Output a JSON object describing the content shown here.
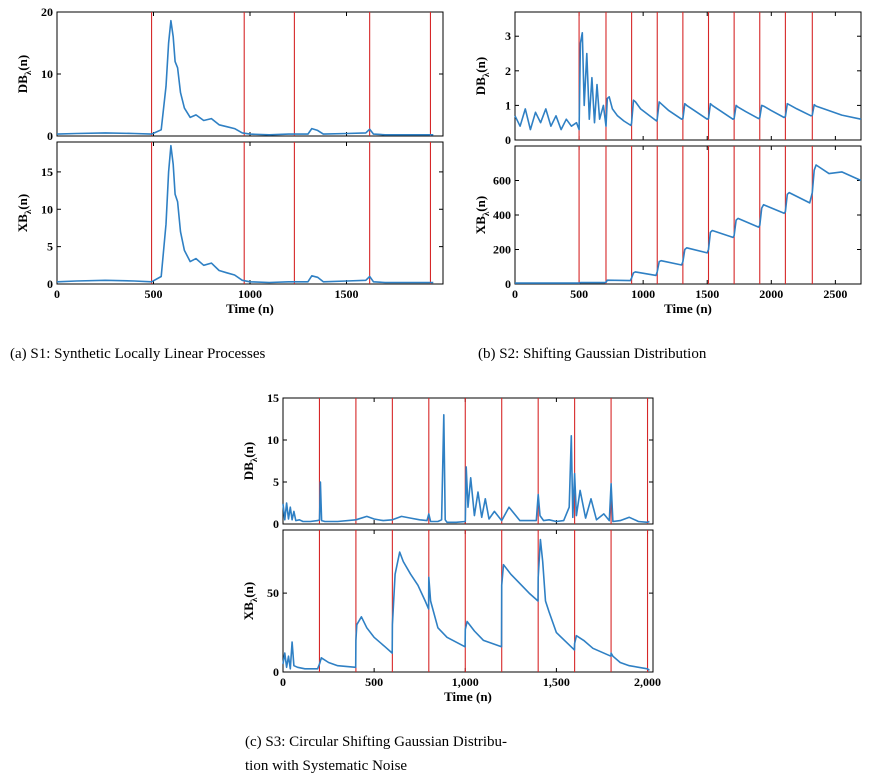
{
  "figure": {
    "captions": {
      "a": "(a) S1: Synthetic Locally Linear Processes",
      "b": "(b) S2: Shifting Gaussian Distribution",
      "c_line1": "(c) S3: Circular Shifting Gaussian Distribu-",
      "c_line2": "tion with Systematic Noise"
    },
    "colors": {
      "series": "#2f80c4",
      "changepoint": "#d62728",
      "axis": "#000000"
    }
  },
  "chart_data": [
    {
      "id": "a_top",
      "type": "line",
      "panel": "a",
      "position": "top",
      "title": "",
      "xlabel": "",
      "ylabel": "DB",
      "ylabel_sub": "λ",
      "ylabel_suffix": "(n)",
      "xlim": [
        0,
        2000
      ],
      "ylim": [
        0,
        20
      ],
      "xticks": [
        0,
        500,
        1000,
        1500
      ],
      "xtick_labels": [
        "",
        "",
        "",
        ""
      ],
      "yticks": [
        0,
        10,
        20
      ],
      "ytick_labels": [
        "0",
        "10",
        "20"
      ],
      "changepoints": [
        490,
        970,
        1230,
        1620,
        1935
      ],
      "series": [
        {
          "x": [
            0,
            100,
            250,
            400,
            490,
            540,
            565,
            578,
            590,
            602,
            612,
            625,
            640,
            660,
            690,
            720,
            760,
            800,
            840,
            880,
            920,
            960,
            1000,
            1100,
            1200,
            1300,
            1320,
            1350,
            1380,
            1500,
            1600,
            1620,
            1640,
            1700,
            1800,
            1935,
            1950
          ],
          "y": [
            0.3,
            0.4,
            0.5,
            0.4,
            0.3,
            1.0,
            8.0,
            15.0,
            18.6,
            16.0,
            12.0,
            11.0,
            7.0,
            4.5,
            3.0,
            3.4,
            2.5,
            2.8,
            1.8,
            1.5,
            1.2,
            0.5,
            0.3,
            0.2,
            0.3,
            0.3,
            1.2,
            0.9,
            0.3,
            0.4,
            0.5,
            1.1,
            0.3,
            0.2,
            0.2,
            0.2,
            0.2
          ]
        }
      ]
    },
    {
      "id": "a_bottom",
      "type": "line",
      "panel": "a",
      "position": "bottom",
      "title": "",
      "xlabel": "Time (n)",
      "ylabel": "XB",
      "ylabel_sub": "λ",
      "ylabel_suffix": "(n)",
      "xlim": [
        0,
        2000
      ],
      "ylim": [
        0,
        19
      ],
      "xticks": [
        0,
        500,
        1000,
        1500
      ],
      "xtick_labels": [
        "0",
        "500",
        "1000",
        "1500"
      ],
      "yticks": [
        0,
        5,
        10,
        15
      ],
      "ytick_labels": [
        "0",
        "5",
        "10",
        "15"
      ],
      "changepoints": [
        490,
        970,
        1230,
        1620,
        1935
      ],
      "series": [
        {
          "x": [
            0,
            100,
            250,
            400,
            490,
            540,
            565,
            578,
            590,
            602,
            612,
            625,
            640,
            660,
            690,
            720,
            760,
            800,
            840,
            880,
            920,
            960,
            1000,
            1100,
            1200,
            1300,
            1320,
            1350,
            1380,
            1500,
            1600,
            1620,
            1640,
            1700,
            1800,
            1935,
            1950
          ],
          "y": [
            0.3,
            0.4,
            0.5,
            0.4,
            0.3,
            1.0,
            8.0,
            15.0,
            18.5,
            16.0,
            12.0,
            11.0,
            7.0,
            4.5,
            3.0,
            3.4,
            2.5,
            2.8,
            1.8,
            1.5,
            1.2,
            0.5,
            0.3,
            0.2,
            0.3,
            0.3,
            1.1,
            0.9,
            0.3,
            0.4,
            0.5,
            1.0,
            0.3,
            0.2,
            0.2,
            0.2,
            0.2
          ]
        }
      ]
    },
    {
      "id": "b_top",
      "type": "line",
      "panel": "b",
      "position": "top",
      "title": "",
      "xlabel": "",
      "ylabel": "DB",
      "ylabel_sub": "λ",
      "ylabel_suffix": "(n)",
      "xlim": [
        0,
        2700
      ],
      "ylim": [
        0,
        3.7
      ],
      "xticks": [
        0,
        500,
        1000,
        1500,
        2000,
        2500
      ],
      "xtick_labels": [
        "",
        "",
        "",
        "",
        "",
        ""
      ],
      "yticks": [
        0,
        1,
        2,
        3
      ],
      "ytick_labels": [
        "0",
        "1",
        "2",
        "3"
      ],
      "changepoints": [
        500,
        710,
        910,
        1110,
        1310,
        1510,
        1710,
        1910,
        2110,
        2320
      ],
      "series": [
        {
          "x": [
            0,
            40,
            80,
            120,
            160,
            200,
            240,
            280,
            320,
            360,
            400,
            440,
            480,
            500,
            510,
            525,
            540,
            560,
            580,
            600,
            620,
            640,
            660,
            690,
            710,
            720,
            735,
            760,
            800,
            850,
            905,
            910,
            925,
            940,
            980,
            1050,
            1105,
            1110,
            1125,
            1140,
            1200,
            1300,
            1310,
            1325,
            1340,
            1400,
            1500,
            1510,
            1525,
            1540,
            1600,
            1700,
            1710,
            1725,
            1740,
            1800,
            1900,
            1910,
            1925,
            1940,
            2000,
            2100,
            2110,
            2125,
            2140,
            2200,
            2310,
            2320,
            2335,
            2350,
            2450,
            2550,
            2700
          ],
          "y": [
            0.7,
            0.4,
            0.9,
            0.3,
            0.8,
            0.5,
            0.9,
            0.4,
            0.7,
            0.3,
            0.6,
            0.4,
            0.5,
            0.3,
            2.8,
            3.1,
            1.0,
            2.5,
            0.6,
            1.8,
            0.5,
            1.6,
            0.6,
            1.0,
            0.4,
            1.2,
            1.25,
            0.9,
            0.7,
            0.55,
            0.42,
            0.5,
            1.15,
            1.1,
            0.9,
            0.7,
            0.55,
            0.6,
            1.1,
            1.05,
            0.85,
            0.6,
            0.62,
            1.05,
            1.0,
            0.85,
            0.6,
            0.62,
            1.05,
            1.0,
            0.85,
            0.6,
            0.62,
            1.0,
            0.95,
            0.82,
            0.62,
            0.65,
            1.0,
            0.98,
            0.85,
            0.65,
            0.68,
            1.05,
            1.02,
            0.9,
            0.7,
            0.72,
            1.02,
            0.98,
            0.85,
            0.72,
            0.6
          ]
        }
      ]
    },
    {
      "id": "b_bottom",
      "type": "line",
      "panel": "b",
      "position": "bottom",
      "title": "",
      "xlabel": "Time (n)",
      "ylabel": "XB",
      "ylabel_sub": "λ",
      "ylabel_suffix": "(n)",
      "xlim": [
        0,
        2700
      ],
      "ylim": [
        0,
        800
      ],
      "xticks": [
        0,
        500,
        1000,
        1500,
        2000,
        2500
      ],
      "xtick_labels": [
        "0",
        "500",
        "1000",
        "1500",
        "2000",
        "2500"
      ],
      "yticks": [
        0,
        200,
        400,
        600
      ],
      "ytick_labels": [
        "0",
        "200",
        "400",
        "600"
      ],
      "changepoints": [
        500,
        710,
        910,
        1110,
        1310,
        1510,
        1710,
        1910,
        2110,
        2320
      ],
      "series": [
        {
          "x": [
            0,
            500,
            510,
            700,
            710,
            720,
            900,
            910,
            925,
            940,
            1100,
            1110,
            1125,
            1140,
            1300,
            1310,
            1325,
            1340,
            1500,
            1510,
            1525,
            1540,
            1700,
            1710,
            1725,
            1740,
            1900,
            1910,
            1925,
            1940,
            2100,
            2110,
            2125,
            2140,
            2300,
            2320,
            2335,
            2350,
            2450,
            2550,
            2700
          ],
          "y": [
            5,
            5,
            8,
            8,
            10,
            22,
            20,
            35,
            65,
            70,
            50,
            70,
            130,
            135,
            110,
            130,
            200,
            210,
            180,
            200,
            300,
            310,
            270,
            280,
            370,
            380,
            330,
            340,
            440,
            460,
            410,
            420,
            520,
            530,
            470,
            530,
            660,
            690,
            640,
            650,
            600
          ]
        }
      ]
    },
    {
      "id": "c_top",
      "type": "line",
      "panel": "c",
      "position": "top",
      "title": "",
      "xlabel": "",
      "ylabel": "DB",
      "ylabel_sub": "λ",
      "ylabel_suffix": "(n)",
      "xlim": [
        0,
        2030
      ],
      "ylim": [
        0,
        15
      ],
      "xticks": [
        0,
        500,
        1000,
        1500,
        2000
      ],
      "xtick_labels": [
        "",
        "",
        "",
        "",
        ""
      ],
      "yticks": [
        0,
        5,
        10,
        15
      ],
      "ytick_labels": [
        "0",
        "5",
        "10",
        "15"
      ],
      "changepoints": [
        200,
        400,
        600,
        800,
        1000,
        1200,
        1400,
        1600,
        1800,
        2000
      ],
      "series": [
        {
          "x": [
            0,
            10,
            20,
            30,
            40,
            50,
            60,
            70,
            90,
            110,
            150,
            190,
            200,
            205,
            212,
            230,
            300,
            400,
            460,
            500,
            550,
            600,
            650,
            700,
            750,
            790,
            800,
            810,
            850,
            870,
            882,
            890,
            900,
            950,
            1000,
            1005,
            1015,
            1030,
            1050,
            1070,
            1090,
            1110,
            1130,
            1160,
            1200,
            1240,
            1300,
            1390,
            1400,
            1410,
            1430,
            1460,
            1500,
            1540,
            1570,
            1582,
            1590,
            1600,
            1610,
            1630,
            1660,
            1690,
            1720,
            1760,
            1790,
            1800,
            1810,
            1850,
            1900,
            1950,
            2000,
            2010
          ],
          "y": [
            2.4,
            0.5,
            2.5,
            0.6,
            2.0,
            0.5,
            1.5,
            0.4,
            0.5,
            0.3,
            0.3,
            0.4,
            0.5,
            5.0,
            0.4,
            0.3,
            0.3,
            0.5,
            0.9,
            0.6,
            0.4,
            0.5,
            0.9,
            0.7,
            0.5,
            0.4,
            1.2,
            0.3,
            0.3,
            0.5,
            13.0,
            0.5,
            0.2,
            0.2,
            0.3,
            6.8,
            2.0,
            5.5,
            1.0,
            3.8,
            0.8,
            3.0,
            0.6,
            1.5,
            0.4,
            2.0,
            0.4,
            0.4,
            3.5,
            1.0,
            0.4,
            0.5,
            0.3,
            0.4,
            2.0,
            10.5,
            0.8,
            6.0,
            1.0,
            4.0,
            0.7,
            3.0,
            0.5,
            1.2,
            0.4,
            4.8,
            0.3,
            0.4,
            0.8,
            0.3,
            0.2,
            0.3
          ]
        }
      ]
    },
    {
      "id": "c_bottom",
      "type": "line",
      "panel": "c",
      "position": "bottom",
      "title": "",
      "xlabel": "Time (n)",
      "ylabel": "XB",
      "ylabel_sub": "λ",
      "ylabel_suffix": "(n)",
      "xlim": [
        0,
        2030
      ],
      "ylim": [
        0,
        90
      ],
      "xticks": [
        0,
        500,
        1000,
        1500,
        2000
      ],
      "xtick_labels": [
        "0",
        "500",
        "1,000",
        "1,500",
        "2,000"
      ],
      "yticks": [
        0,
        50
      ],
      "ytick_labels": [
        "0",
        "50"
      ],
      "changepoints": [
        200,
        400,
        600,
        800,
        1000,
        1200,
        1400,
        1600,
        1800,
        2000
      ],
      "series": [
        {
          "x": [
            0,
            10,
            20,
            30,
            40,
            50,
            60,
            80,
            120,
            190,
            200,
            210,
            250,
            300,
            399,
            400,
            405,
            430,
            460,
            500,
            560,
            599,
            600,
            615,
            640,
            660,
            700,
            740,
            780,
            799,
            800,
            810,
            850,
            900,
            999,
            1000,
            1010,
            1050,
            1100,
            1199,
            1200,
            1210,
            1250,
            1300,
            1350,
            1399,
            1400,
            1412,
            1425,
            1440,
            1460,
            1500,
            1599,
            1600,
            1610,
            1650,
            1700,
            1799,
            1800,
            1810,
            1850,
            1900,
            1999,
            2000,
            2010
          ],
          "y": [
            5,
            12,
            3,
            10,
            2,
            19,
            4,
            3,
            2,
            2,
            5,
            9,
            6,
            4,
            3,
            20,
            30,
            35,
            28,
            22,
            16,
            12,
            30,
            62,
            76,
            70,
            62,
            55,
            45,
            40,
            60,
            45,
            28,
            22,
            16,
            27,
            32,
            26,
            20,
            16,
            55,
            68,
            62,
            56,
            50,
            45,
            60,
            84,
            70,
            45,
            38,
            25,
            14,
            18,
            23,
            20,
            15,
            10,
            12,
            10,
            6,
            4,
            2,
            2,
            1
          ]
        }
      ]
    }
  ]
}
